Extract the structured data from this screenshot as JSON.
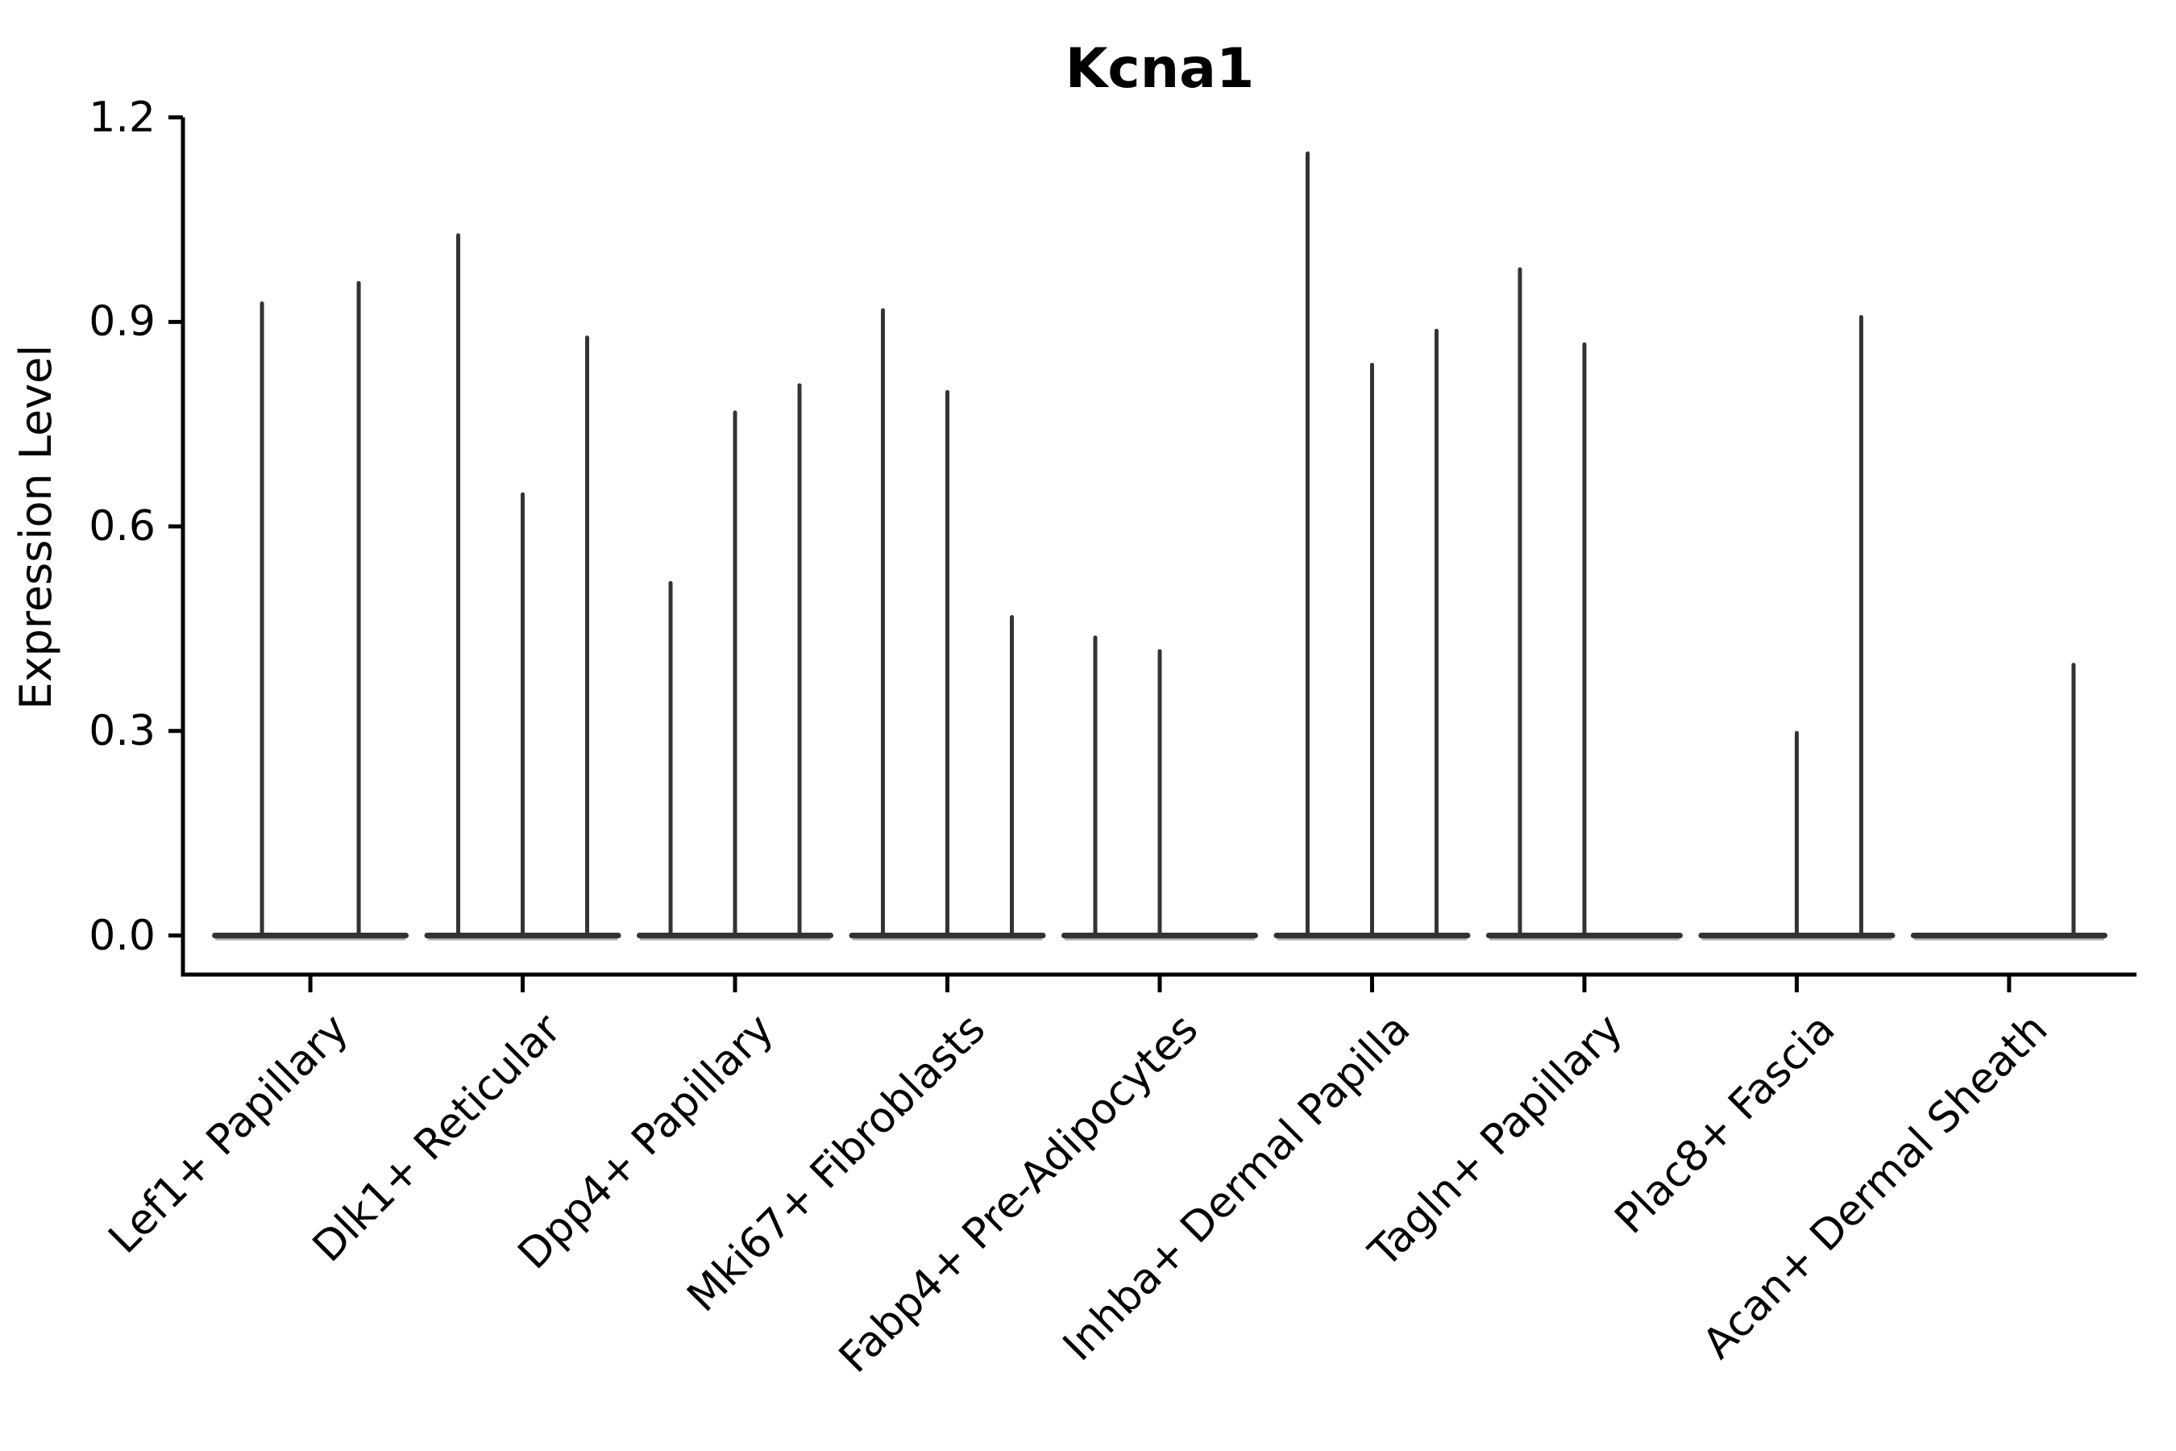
{
  "figure": {
    "title": "Kcna1",
    "ylabel": "Expression Level"
  },
  "chart_data": {
    "type": "violin",
    "title": "Kcna1",
    "xlabel": "",
    "ylabel": "Expression Level",
    "ylim": [
      0,
      1.2
    ],
    "yticks": [
      0.0,
      0.3,
      0.6,
      0.9,
      1.2
    ],
    "ytick_labels": [
      "0.0",
      "0.3",
      "0.6",
      "0.9",
      "1.2"
    ],
    "grid": false,
    "legend_position": "none",
    "violin_color": "#333333",
    "violin_base_fringe_color": "#9a9a9a",
    "axis_color": "#000000",
    "categories": [
      {
        "label": "Lef1+ Papillary",
        "violins": [
          0.93,
          0.96
        ]
      },
      {
        "label": "Dlk1+ Reticular",
        "violins": [
          1.03,
          0.65,
          0.88
        ]
      },
      {
        "label": "Dpp4+ Papillary",
        "violins": [
          0.52,
          0.77,
          0.81
        ]
      },
      {
        "label": "Mki67+ Fibroblasts",
        "violins": [
          0.92,
          0.8,
          0.47
        ]
      },
      {
        "label": "Fabp4+ Pre-Adipocytes",
        "violins": [
          0.44,
          0.42,
          0.0
        ]
      },
      {
        "label": "Inhba+ Dermal Papilla",
        "violins": [
          1.15,
          0.84,
          0.89
        ]
      },
      {
        "label": "Tagln+ Papillary",
        "violins": [
          0.98,
          0.87,
          0.0
        ]
      },
      {
        "label": "Plac8+ Fascia",
        "violins": [
          0.0,
          0.3,
          0.91
        ]
      },
      {
        "label": "Acan+ Dermal Sheath",
        "violins": [
          0.0,
          0.0,
          0.4
        ]
      }
    ]
  }
}
